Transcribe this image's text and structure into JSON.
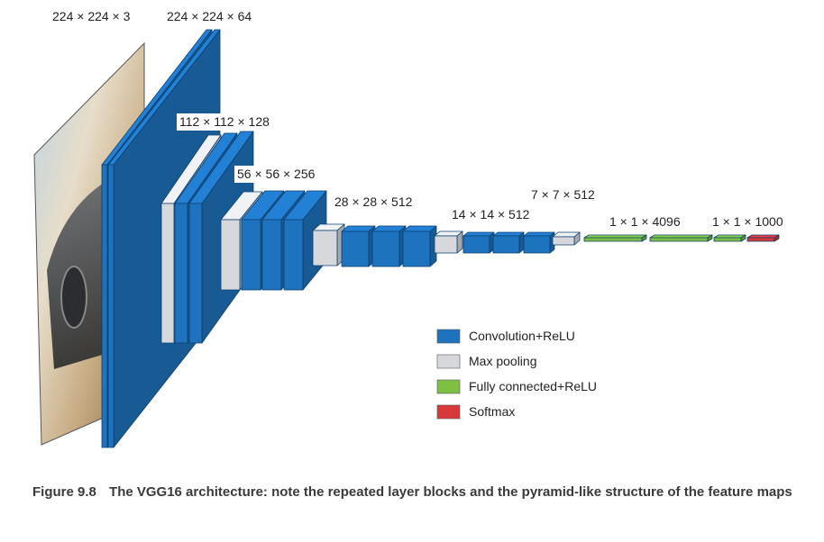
{
  "diagram": {
    "dimension_labels": [
      "224 × 224 × 3",
      "224 × 224 × 64",
      "112 × 112 × 128",
      "56 × 56 × 256",
      "28 × 28 × 512",
      "14 × 14 × 512",
      "7 × 7 × 512",
      "1 × 1 × 4096",
      "1 × 1 × 1000"
    ],
    "legend": [
      {
        "label": "Convolution+ReLU",
        "color": "#1e73be"
      },
      {
        "label": "Max pooling",
        "color": "#d6d8dc"
      },
      {
        "label": "Fully connected+ReLU",
        "color": "#7dc043"
      },
      {
        "label": "Softmax",
        "color": "#d9383a"
      }
    ],
    "colors": {
      "conv": "#1e73be",
      "pool": "#d6d8dc",
      "fc": "#7dc043",
      "softmax": "#d9383a",
      "outline": "#0b3f70"
    }
  },
  "caption": {
    "figure_number": "Figure 9.8",
    "text": "The VGG16 architecture: note the repeated layer blocks and the pyramid-like structure of the feature maps"
  }
}
